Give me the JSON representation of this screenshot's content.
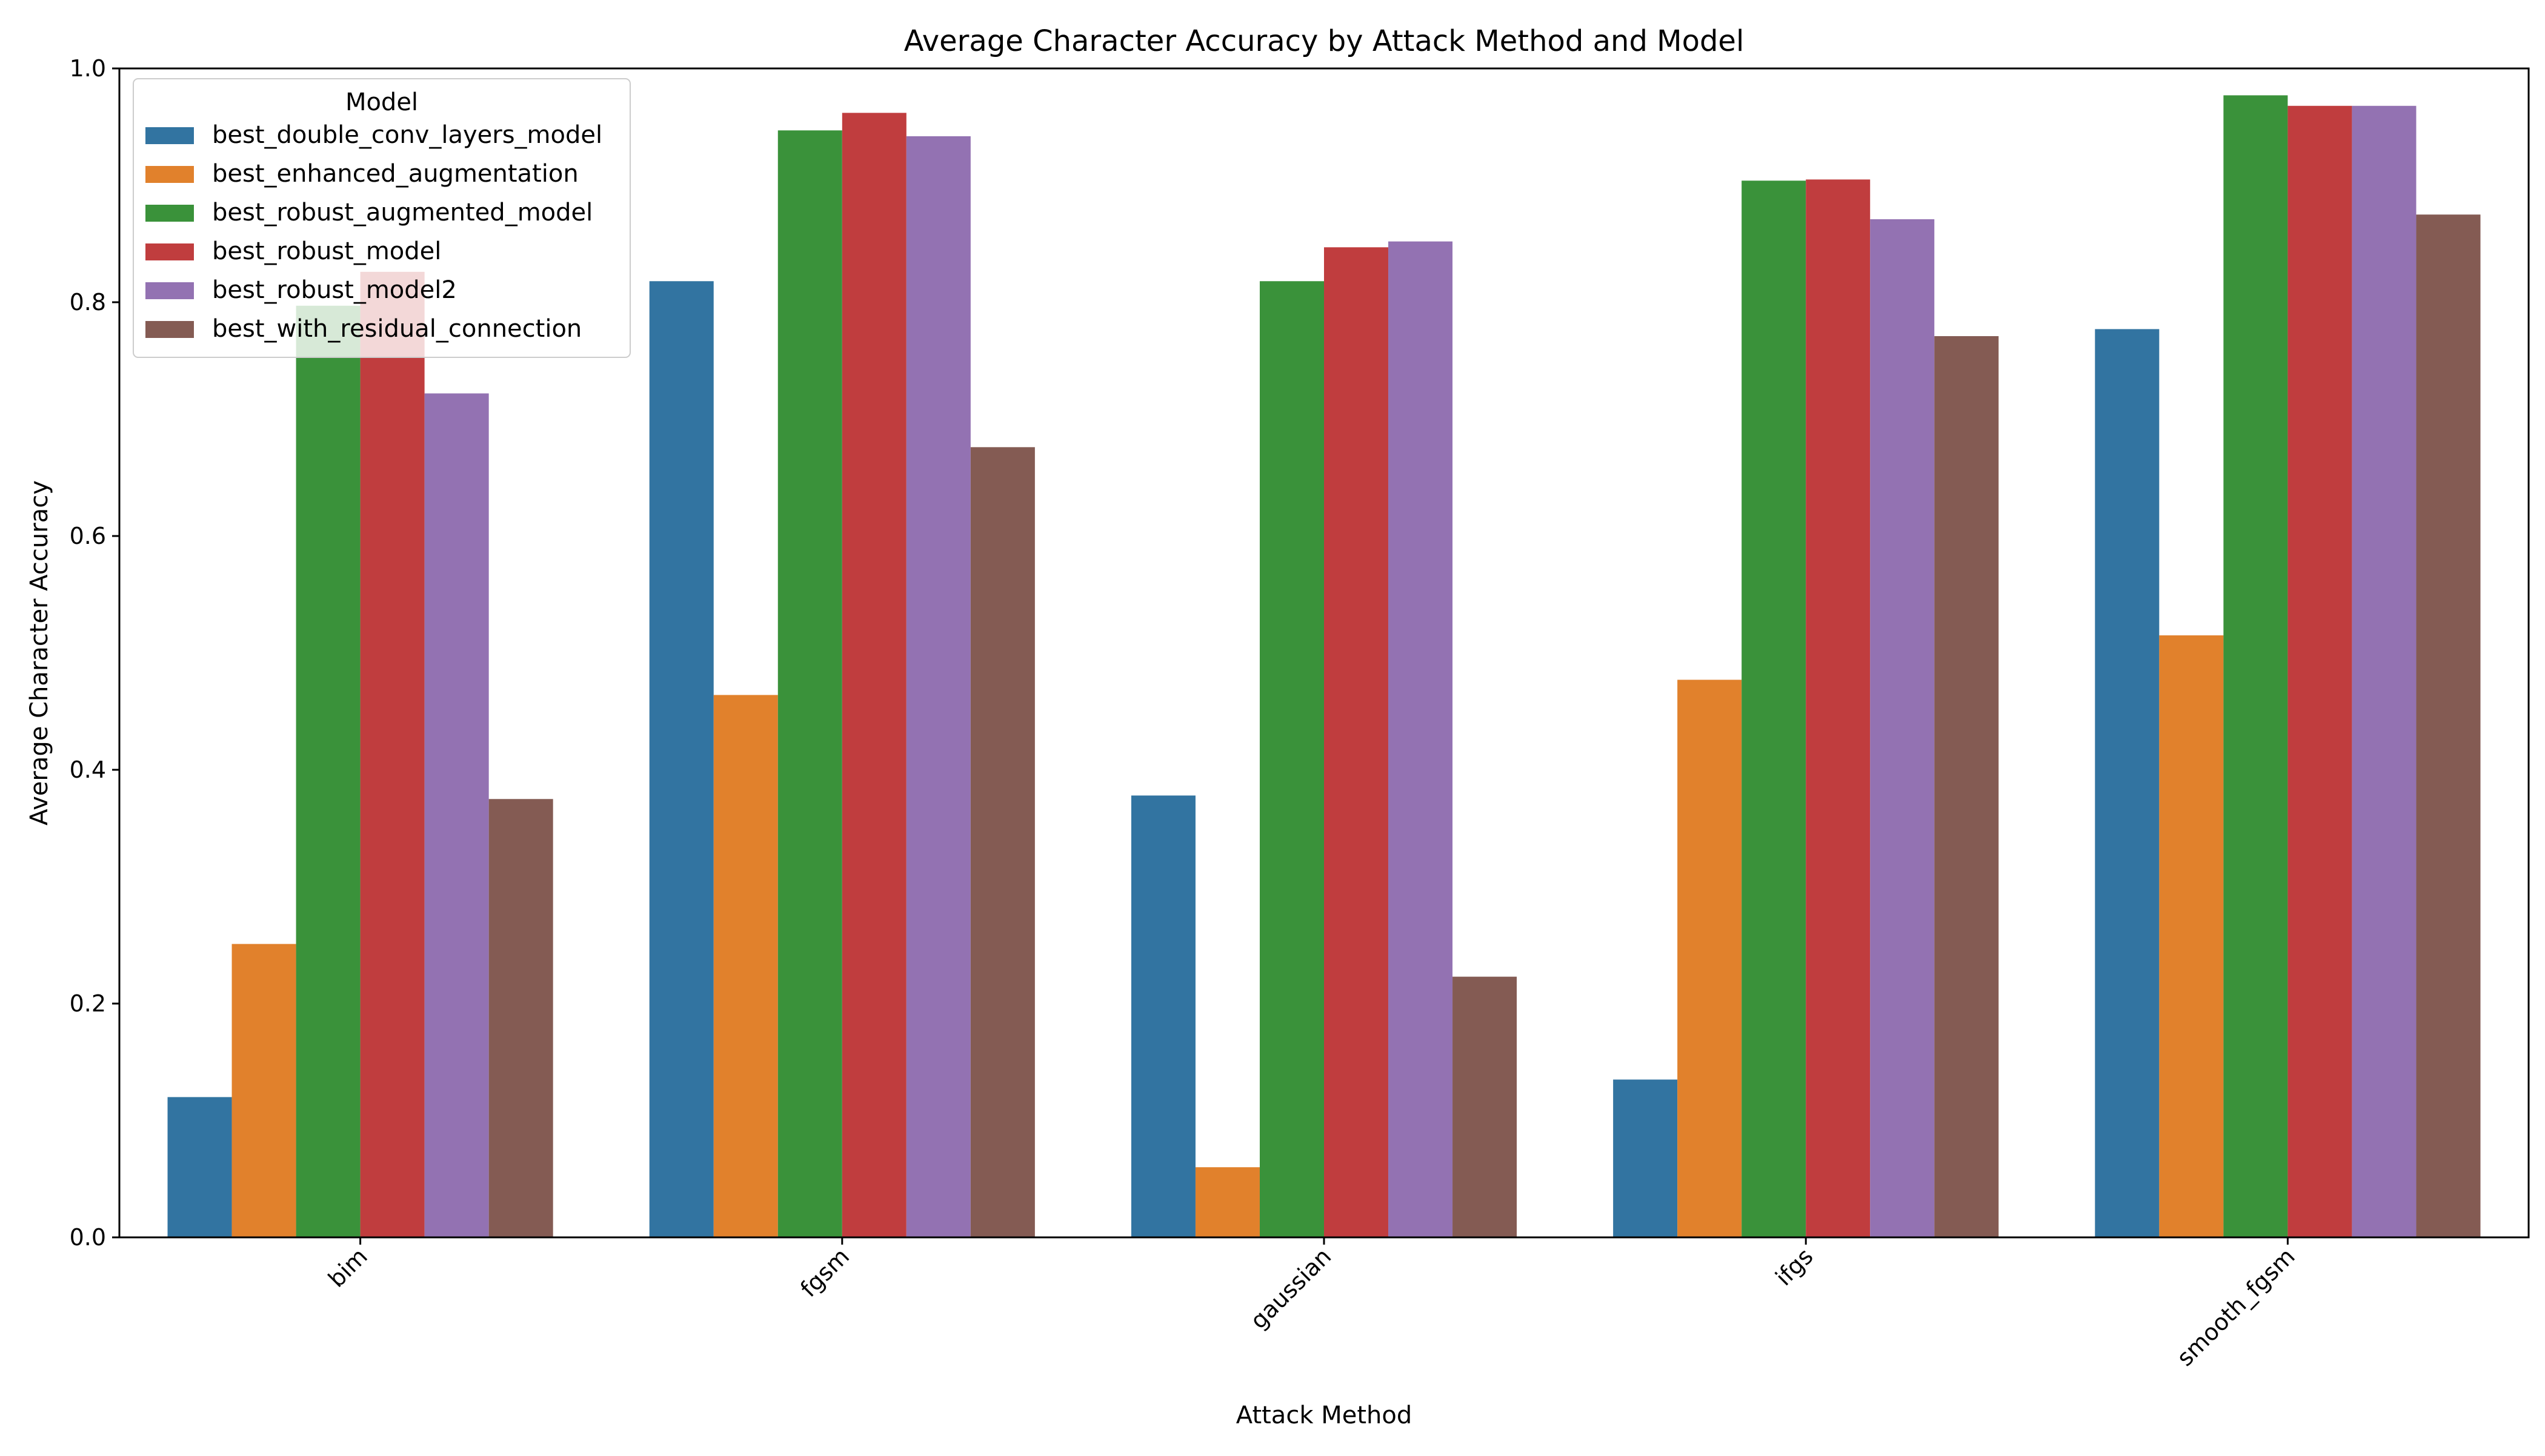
{
  "chart_data": {
    "type": "bar",
    "title": "Average Character Accuracy by Attack Method and Model",
    "xlabel": "Attack Method",
    "ylabel": "Average Character Accuracy",
    "ylim": [
      0,
      1.0
    ],
    "yticks": [
      "0.0",
      "0.2",
      "0.4",
      "0.6",
      "0.8",
      "1.0"
    ],
    "categories": [
      "bim",
      "fgsm",
      "gaussian",
      "ifgs",
      "smooth_fgsm"
    ],
    "legend": {
      "title": "Model",
      "placement": "top-left"
    },
    "grid": false,
    "series": [
      {
        "name": "best_double_conv_layers_model",
        "color": "#3274a1",
        "values": [
          0.12,
          0.818,
          0.378,
          0.135,
          0.777
        ]
      },
      {
        "name": "best_enhanced_augmentation",
        "color": "#e1812c",
        "values": [
          0.251,
          0.464,
          0.06,
          0.477,
          0.515
        ]
      },
      {
        "name": "best_robust_augmented_model",
        "color": "#3a923a",
        "values": [
          0.797,
          0.947,
          0.818,
          0.904,
          0.977
        ]
      },
      {
        "name": "best_robust_model",
        "color": "#c03d3e",
        "values": [
          0.826,
          0.962,
          0.847,
          0.905,
          0.968
        ]
      },
      {
        "name": "best_robust_model2",
        "color": "#9372b2",
        "values": [
          0.722,
          0.942,
          0.852,
          0.871,
          0.968
        ]
      },
      {
        "name": "best_with_residual_connection",
        "color": "#845b53",
        "values": [
          0.375,
          0.676,
          0.223,
          0.771,
          0.875
        ]
      }
    ]
  }
}
